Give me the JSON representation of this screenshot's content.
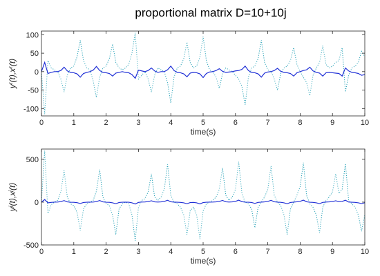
{
  "chart_data": [
    {
      "type": "line",
      "title": "proportional matrix D=10+10j",
      "xlabel": "time(s)",
      "ylabel": [
        "y",
        "r",
        "(t),x",
        "r",
        "(t)"
      ],
      "xlim": [
        0,
        10
      ],
      "xticks": [
        0,
        1,
        2,
        3,
        4,
        5,
        6,
        7,
        8,
        9,
        10
      ],
      "ylim": [
        -120,
        110
      ],
      "yticks": [
        -100,
        -50,
        0,
        50,
        100
      ],
      "grid": false,
      "x": [
        0,
        0.1,
        0.2,
        0.3,
        0.4,
        0.5,
        0.6,
        0.7,
        0.8,
        0.9,
        1,
        1.1,
        1.2,
        1.3,
        1.4,
        1.5,
        1.6,
        1.7,
        1.8,
        1.9,
        2,
        2.1,
        2.2,
        2.3,
        2.4,
        2.5,
        2.6,
        2.7,
        2.8,
        2.9,
        3,
        3.1,
        3.2,
        3.3,
        3.4,
        3.5,
        3.6,
        3.7,
        3.8,
        3.9,
        4,
        4.1,
        4.2,
        4.3,
        4.4,
        4.5,
        4.6,
        4.7,
        4.8,
        4.9,
        5,
        5.1,
        5.2,
        5.3,
        5.4,
        5.5,
        5.6,
        5.7,
        5.8,
        5.9,
        6,
        6.1,
        6.2,
        6.3,
        6.4,
        6.5,
        6.6,
        6.7,
        6.8,
        6.9,
        7,
        7.1,
        7.2,
        7.3,
        7.4,
        7.5,
        7.6,
        7.7,
        7.8,
        7.9,
        8,
        8.1,
        8.2,
        8.3,
        8.4,
        8.5,
        8.6,
        8.7,
        8.8,
        8.9,
        9,
        9.1,
        9.2,
        9.3,
        9.4,
        9.5,
        9.6,
        9.7,
        9.8,
        9.9,
        10
      ],
      "series": [
        {
          "color": "#2aa3b8",
          "dash": "dotted",
          "values": [
            0,
            -115,
            30,
            10,
            5,
            0,
            -20,
            -55,
            -10,
            10,
            15,
            40,
            85,
            30,
            10,
            5,
            -25,
            -70,
            -15,
            10,
            15,
            35,
            75,
            25,
            10,
            5,
            10,
            20,
            50,
            105,
            -20,
            -10,
            0,
            -20,
            -55,
            -10,
            10,
            5,
            0,
            -30,
            -85,
            -15,
            10,
            15,
            35,
            80,
            25,
            10,
            15,
            40,
            95,
            30,
            5,
            0,
            -15,
            -45,
            -5,
            10,
            5,
            0,
            -10,
            -20,
            -40,
            -90,
            -15,
            10,
            15,
            35,
            85,
            25,
            5,
            0,
            -20,
            -50,
            -5,
            10,
            15,
            30,
            65,
            20,
            0,
            -15,
            -30,
            -65,
            -10,
            10,
            25,
            70,
            20,
            10,
            15,
            25,
            30,
            65,
            -55,
            -10,
            10,
            15,
            25,
            55,
            40
          ]
        },
        {
          "color": "#1f2fd6",
          "dash": "solid",
          "values": [
            0,
            25,
            -5,
            -2,
            0,
            0,
            3,
            12,
            2,
            -2,
            -3,
            -6,
            -15,
            -5,
            -2,
            0,
            4,
            14,
            3,
            -2,
            -3,
            -5,
            -12,
            -4,
            -2,
            0,
            -2,
            -3,
            -8,
            -18,
            4,
            2,
            0,
            3,
            10,
            2,
            -2,
            0,
            0,
            5,
            15,
            3,
            -2,
            -3,
            -6,
            -14,
            -4,
            -2,
            -3,
            -6,
            -16,
            -5,
            -1,
            0,
            3,
            8,
            1,
            -2,
            -1,
            0,
            2,
            3,
            6,
            15,
            3,
            -2,
            -3,
            -6,
            -15,
            -4,
            -1,
            0,
            3,
            9,
            1,
            -2,
            -3,
            -5,
            -12,
            -3,
            0,
            3,
            5,
            12,
            2,
            -2,
            -4,
            -12,
            -3,
            -2,
            -3,
            -4,
            -5,
            -12,
            10,
            2,
            -2,
            -3,
            -5,
            -10,
            -8
          ]
        }
      ]
    },
    {
      "type": "line",
      "xlabel": "time(s)",
      "ylabel": [
        "y",
        "j",
        "(t),x",
        "j",
        "(t)"
      ],
      "xlim": [
        0,
        10
      ],
      "xticks": [
        0,
        1,
        2,
        3,
        4,
        5,
        6,
        7,
        8,
        9,
        10
      ],
      "ylim": [
        -500,
        620
      ],
      "yticks": [
        -500,
        0,
        500
      ],
      "grid": false,
      "x": [
        0,
        0.1,
        0.2,
        0.3,
        0.4,
        0.5,
        0.6,
        0.7,
        0.8,
        0.9,
        1,
        1.1,
        1.2,
        1.3,
        1.4,
        1.5,
        1.6,
        1.7,
        1.8,
        1.9,
        2,
        2.1,
        2.2,
        2.3,
        2.4,
        2.5,
        2.6,
        2.7,
        2.8,
        2.9,
        3,
        3.1,
        3.2,
        3.3,
        3.4,
        3.5,
        3.6,
        3.7,
        3.8,
        3.9,
        4,
        4.1,
        4.2,
        4.3,
        4.4,
        4.5,
        4.6,
        4.7,
        4.8,
        4.9,
        5,
        5.1,
        5.2,
        5.3,
        5.4,
        5.5,
        5.6,
        5.7,
        5.8,
        5.9,
        6,
        6.1,
        6.2,
        6.3,
        6.4,
        6.5,
        6.6,
        6.7,
        6.8,
        6.9,
        7,
        7.1,
        7.2,
        7.3,
        7.4,
        7.5,
        7.6,
        7.7,
        7.8,
        7.9,
        8,
        8.1,
        8.2,
        8.3,
        8.4,
        8.5,
        8.6,
        8.7,
        8.8,
        8.9,
        9,
        9.1,
        9.2,
        9.3,
        9.4,
        9.5,
        9.6,
        9.7,
        9.8,
        9.9,
        10
      ],
      "series": [
        {
          "color": "#2aa3b8",
          "dash": "dotted",
          "values": [
            0,
            600,
            -130,
            -30,
            0,
            20,
            120,
            370,
            60,
            -20,
            -40,
            -120,
            -330,
            -80,
            -20,
            0,
            20,
            130,
            380,
            60,
            -20,
            -40,
            -150,
            -380,
            -80,
            -20,
            0,
            -20,
            -150,
            -450,
            -60,
            20,
            40,
            120,
            330,
            60,
            20,
            60,
            150,
            440,
            80,
            0,
            -20,
            -60,
            -150,
            -380,
            -100,
            -60,
            -150,
            -430,
            -100,
            -20,
            0,
            20,
            60,
            150,
            400,
            80,
            20,
            60,
            150,
            470,
            100,
            0,
            -20,
            -80,
            -300,
            -60,
            0,
            60,
            150,
            420,
            80,
            0,
            -40,
            -150,
            -380,
            -80,
            0,
            80,
            180,
            460,
            80,
            -20,
            -60,
            -150,
            -360,
            -60,
            20,
            60,
            120,
            330,
            100,
            150,
            450,
            20,
            -20,
            -60,
            -150,
            -340,
            -150
          ]
        },
        {
          "color": "#1f2fd6",
          "dash": "solid",
          "values": [
            0,
            30,
            -8,
            -3,
            0,
            1,
            6,
            18,
            3,
            -1,
            -2,
            -6,
            -16,
            -4,
            -1,
            0,
            1,
            6,
            19,
            3,
            -1,
            -2,
            -8,
            -19,
            -4,
            -1,
            0,
            -1,
            -8,
            -22,
            -3,
            1,
            2,
            6,
            16,
            3,
            1,
            3,
            8,
            22,
            4,
            0,
            -1,
            -3,
            -8,
            -19,
            -5,
            -3,
            -8,
            -21,
            -5,
            -1,
            0,
            1,
            3,
            8,
            20,
            4,
            1,
            3,
            8,
            23,
            5,
            0,
            -1,
            -4,
            -15,
            -3,
            0,
            3,
            8,
            21,
            4,
            0,
            -2,
            -8,
            -19,
            -4,
            0,
            4,
            9,
            23,
            4,
            -1,
            -3,
            -8,
            -18,
            -3,
            1,
            3,
            6,
            16,
            5,
            8,
            22,
            1,
            -1,
            -3,
            -8,
            -17,
            -8
          ]
        }
      ]
    }
  ]
}
